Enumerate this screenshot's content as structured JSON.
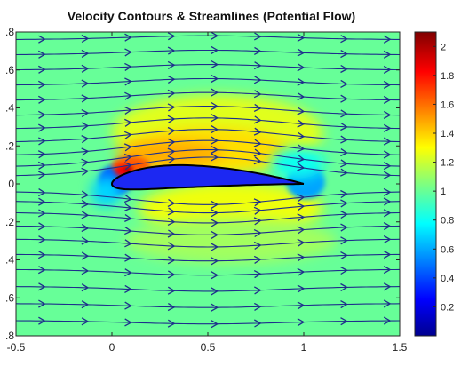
{
  "chart_data": {
    "type": "heatmap",
    "title": "Velocity Contours & Streamlines (Potential Flow)",
    "xlabel": "",
    "ylabel": "",
    "xlim": [
      -0.5,
      1.5
    ],
    "ylim": [
      -0.8,
      0.8
    ],
    "x_ticks": [
      -0.5,
      0,
      0.5,
      1,
      1.5
    ],
    "y_ticks": [
      0.8,
      0.6,
      0.4,
      0.2,
      0,
      -0.2,
      -0.4,
      -0.6,
      -0.8
    ],
    "y_tick_labels": [
      ".8",
      ".6",
      ".4",
      ".2",
      "0",
      ".2",
      ".4",
      ".6",
      ".8"
    ],
    "colorbar": {
      "colormap": "jet",
      "range": [
        0,
        2.1
      ],
      "ticks": [
        2,
        1.8,
        1.6,
        1.4,
        1.2,
        1,
        0.8,
        0.6,
        0.4,
        0.2
      ]
    },
    "freestream_speed": 1.0,
    "airfoil": {
      "leading_edge": [
        0,
        0
      ],
      "trailing_edge": [
        1,
        0
      ],
      "max_thickness": 0.12,
      "max_camber": 0.04,
      "fill": "#1c28f2"
    },
    "streamline_color": "#1e2f8c",
    "streamline_y_starts": [
      -0.72,
      -0.63,
      -0.54,
      -0.45,
      -0.37,
      -0.29,
      -0.22,
      -0.15,
      -0.09,
      -0.04,
      0.04,
      0.09,
      0.15,
      0.22,
      0.29,
      0.36,
      0.44,
      0.52,
      0.6,
      0.68,
      0.76
    ]
  }
}
